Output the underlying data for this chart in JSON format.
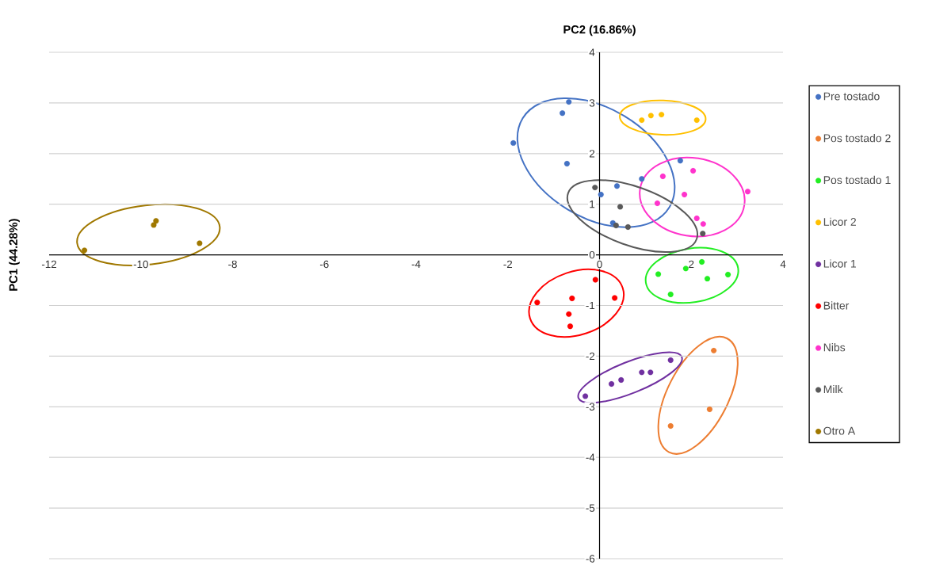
{
  "chart_data": {
    "type": "scatter",
    "xlabel": "PC2 (16.86%)",
    "ylabel": "PC1 (44.28%)",
    "xlim": [
      -12,
      4
    ],
    "ylim": [
      -6,
      4
    ],
    "xticks": [
      -12,
      -10,
      -8,
      -6,
      -4,
      -2,
      0,
      2,
      4
    ],
    "yticks": [
      -6,
      -5,
      -4,
      -3,
      -2,
      -1,
      0,
      1,
      2,
      3,
      4
    ],
    "grid": "y",
    "legend": "right",
    "marker": "circle",
    "series": [
      {
        "name": "Pre tostado",
        "color": "#4472c4",
        "x": [
          -0.67,
          -0.81,
          -1.88,
          -0.71,
          0.03,
          0.38,
          0.92,
          1.76,
          0.29
        ],
        "values": [
          3.02,
          2.8,
          2.21,
          1.8,
          1.19,
          1.36,
          1.5,
          1.86,
          0.63
        ]
      },
      {
        "name": "Pos tostado 2",
        "color": "#ed7d31",
        "x": [
          2.49,
          2.4,
          1.55
        ],
        "values": [
          -1.89,
          -3.05,
          -3.38
        ]
      },
      {
        "name": "Pos tostado 1",
        "color": "#22ee22",
        "x": [
          1.28,
          1.88,
          2.23,
          2.35,
          2.8,
          1.55
        ],
        "values": [
          -0.38,
          -0.27,
          -0.14,
          -0.47,
          -0.39,
          -0.78
        ]
      },
      {
        "name": "Licor 2",
        "color": "#ffc000",
        "x": [
          0.92,
          1.12,
          1.35,
          2.12
        ],
        "values": [
          2.66,
          2.75,
          2.77,
          2.66
        ]
      },
      {
        "name": "Licor 1",
        "color": "#7030a0",
        "x": [
          -0.31,
          0.26,
          0.47,
          0.92,
          1.11,
          1.55
        ],
        "values": [
          -2.79,
          -2.55,
          -2.47,
          -2.32,
          -2.32,
          -2.08
        ]
      },
      {
        "name": "Bitter",
        "color": "#ff0000",
        "x": [
          -0.09,
          0.33,
          -1.36,
          -0.6,
          -0.67,
          -0.64
        ],
        "values": [
          -0.49,
          -0.85,
          -0.94,
          -0.86,
          -1.17,
          -1.41
        ]
      },
      {
        "name": "Nibs",
        "color": "#ff33cc",
        "x": [
          1.38,
          2.04,
          1.26,
          1.85,
          3.23,
          2.12,
          2.26
        ],
        "values": [
          1.55,
          1.66,
          1.02,
          1.19,
          1.25,
          0.72,
          0.61
        ]
      },
      {
        "name": "Milk",
        "color": "#595959",
        "x": [
          -0.1,
          0.45,
          0.36,
          0.62,
          2.25
        ],
        "values": [
          1.33,
          0.95,
          0.58,
          0.55,
          0.42
        ]
      },
      {
        "name": "Otro A",
        "color": "#a07800",
        "x": [
          -11.23,
          -9.72,
          -9.67,
          -8.72
        ],
        "values": [
          0.09,
          0.59,
          0.67,
          0.23
        ]
      }
    ]
  }
}
